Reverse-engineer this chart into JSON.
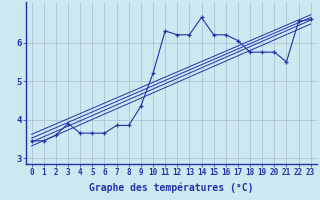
{
  "x_labels": [
    0,
    1,
    2,
    3,
    4,
    5,
    6,
    7,
    8,
    9,
    10,
    11,
    12,
    13,
    14,
    15,
    16,
    17,
    18,
    19,
    20,
    21,
    22,
    23
  ],
  "main_line": {
    "x": [
      0,
      1,
      2,
      3,
      4,
      5,
      6,
      7,
      8,
      9,
      10,
      11,
      12,
      13,
      14,
      15,
      16,
      17,
      18,
      19,
      20,
      21,
      22,
      23
    ],
    "y": [
      3.45,
      3.45,
      3.6,
      3.9,
      3.65,
      3.65,
      3.65,
      3.85,
      3.85,
      4.35,
      5.2,
      6.3,
      6.2,
      6.2,
      6.65,
      6.2,
      6.2,
      6.05,
      5.75,
      5.75,
      5.75,
      5.5,
      6.55,
      6.6
    ]
  },
  "reg_lines": [
    {
      "x": [
        0,
        23
      ],
      "y": [
        3.42,
        6.58
      ]
    },
    {
      "x": [
        0,
        23
      ],
      "y": [
        3.52,
        6.65
      ]
    },
    {
      "x": [
        0,
        23
      ],
      "y": [
        3.32,
        6.48
      ]
    },
    {
      "x": [
        0,
        23
      ],
      "y": [
        3.62,
        6.72
      ]
    }
  ],
  "ylim": [
    2.85,
    7.05
  ],
  "xlim": [
    -0.5,
    23.5
  ],
  "yticks": [
    3,
    4,
    5,
    6
  ],
  "bg_color": "#cce8f0",
  "grid_color": "#aabbd0",
  "line_color": "#2233aa",
  "xlabel": "Graphe des températures (°C)",
  "xlabel_fontsize": 7,
  "tick_fontsize": 5.5,
  "marker": "+"
}
